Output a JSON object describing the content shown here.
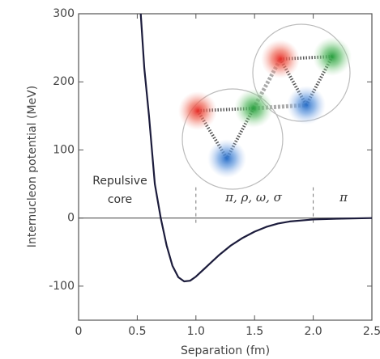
{
  "chart_data": {
    "type": "line",
    "x_label": "Separation (fm)",
    "y_label": "Internucleon potential (MeV)",
    "x": [
      0.53,
      0.56,
      0.6,
      0.65,
      0.7,
      0.75,
      0.8,
      0.85,
      0.9,
      0.95,
      1.0,
      1.1,
      1.2,
      1.3,
      1.4,
      1.5,
      1.6,
      1.7,
      1.8,
      2.0,
      2.2,
      2.5
    ],
    "values": [
      300,
      220,
      150,
      50,
      0,
      -40,
      -70,
      -87,
      -93,
      -92,
      -86,
      -70,
      -54,
      -40,
      -29,
      -20,
      -13,
      -8,
      -5,
      -2,
      -1,
      0
    ],
    "color": "#1c1c3c",
    "xlim": [
      0,
      2.5
    ],
    "ylim": [
      -150,
      300
    ],
    "xticks": [
      0,
      0.5,
      {
        "value": 1,
        "label": "1.0"
      },
      1.5,
      {
        "value": 2,
        "label": "2.0"
      },
      2.5
    ],
    "yticks": [
      -100,
      0,
      100,
      200,
      300
    ],
    "zero_line": 0,
    "region_boundaries": [
      1,
      2
    ],
    "annotations": [
      "Repulsive",
      "core",
      "π, ρ, ω, σ",
      "π"
    ]
  }
}
